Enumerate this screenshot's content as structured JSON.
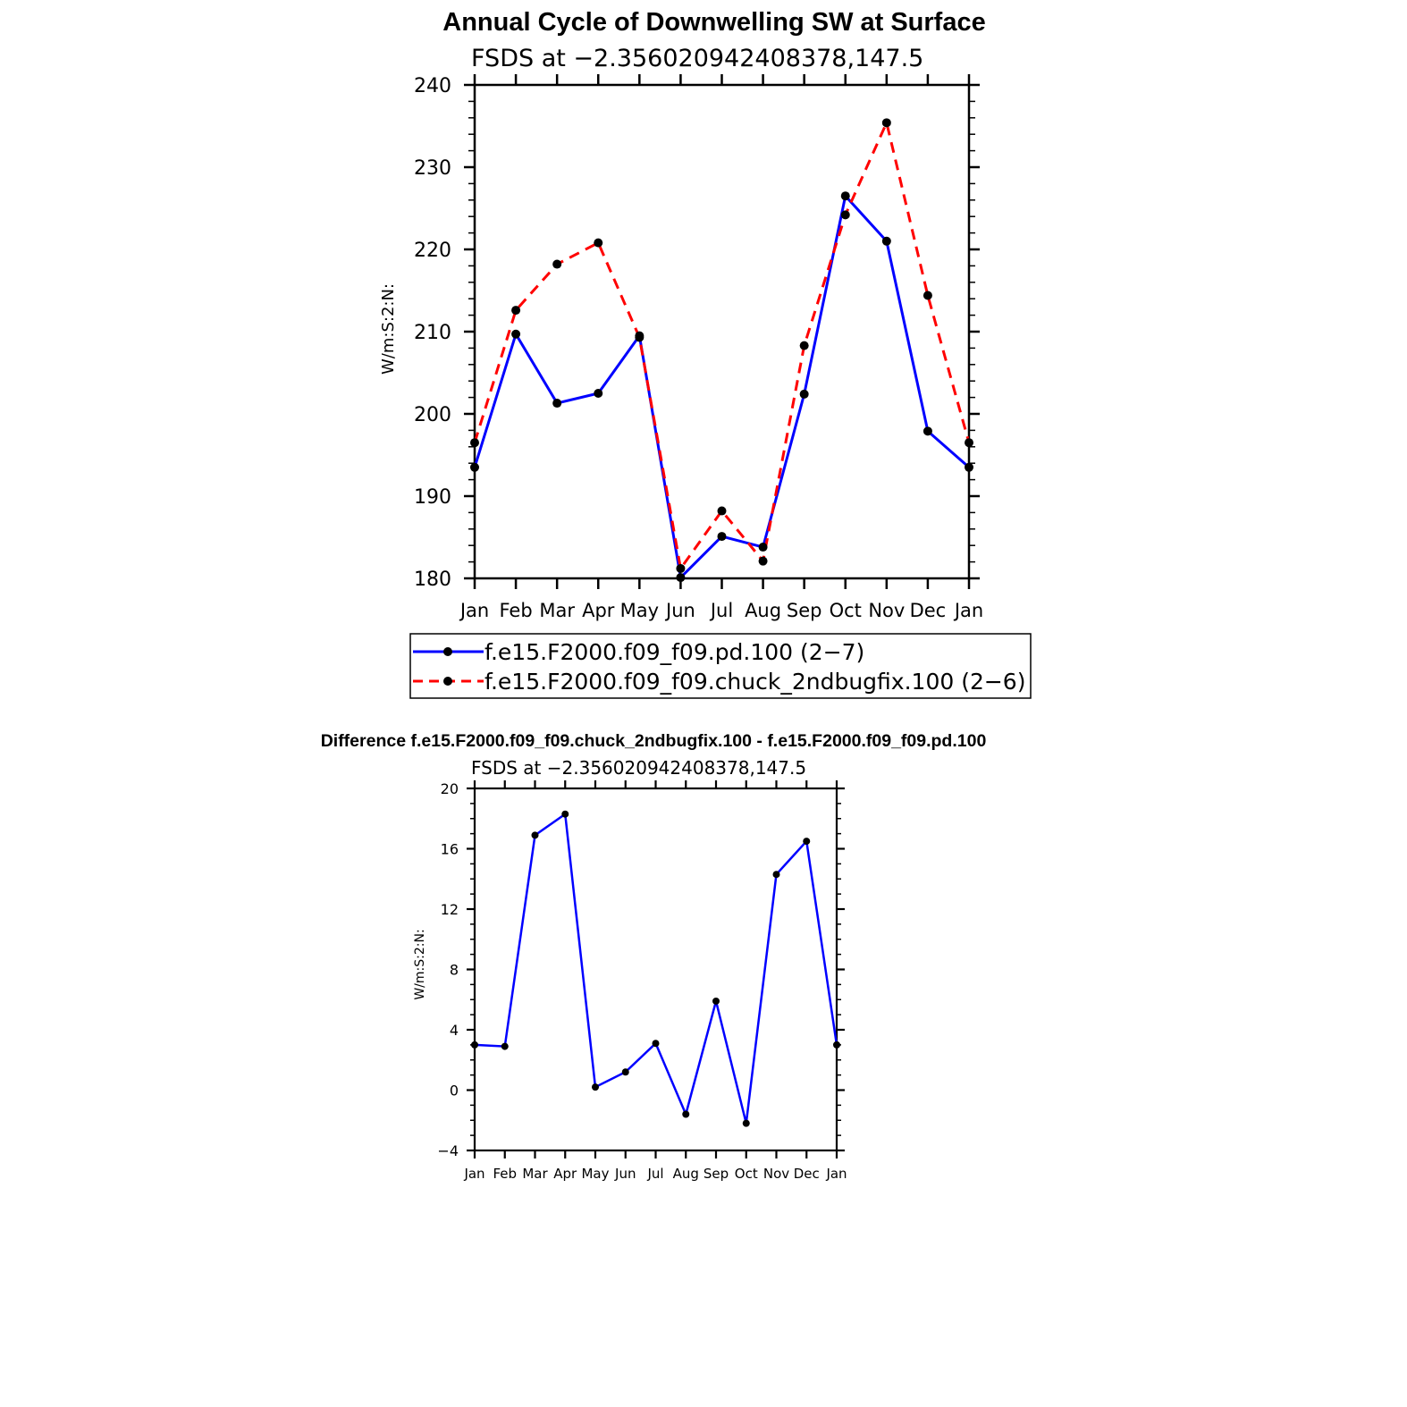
{
  "chart_data": [
    {
      "type": "line",
      "title": "Annual Cycle of Downwelling SW at Surface",
      "subtitle": "FSDS at −2.356020942408378,147.5",
      "ylabel": "W/m:S:2:N:",
      "xlabel": "",
      "categories": [
        "Jan",
        "Feb",
        "Mar",
        "Apr",
        "May",
        "Jun",
        "Jul",
        "Aug",
        "Sep",
        "Oct",
        "Nov",
        "Dec",
        "Jan"
      ],
      "ylim": [
        180,
        240
      ],
      "yticks": [
        "180",
        "190",
        "200",
        "210",
        "220",
        "230",
        "240"
      ],
      "grid": false,
      "legend_position": "below",
      "series": [
        {
          "name": "f.e15.F2000.f09_f09.pd.100 (2−7)",
          "color": "#0000ff",
          "style": "solid",
          "values": [
            193.5,
            209.7,
            201.3,
            202.5,
            209.5,
            180.1,
            185.1,
            183.8,
            202.4,
            226.5,
            221.0,
            197.9,
            193.5
          ]
        },
        {
          "name": "f.e15.F2000.f09_f09.chuck_2ndbugfix.100 (2−6)",
          "color": "#ff0000",
          "style": "dashed",
          "values": [
            196.5,
            212.6,
            218.2,
            220.8,
            209.3,
            181.2,
            188.2,
            182.1,
            208.3,
            224.2,
            235.4,
            214.4,
            196.5
          ]
        }
      ]
    },
    {
      "type": "line",
      "title": "Difference f.e15.F2000.f09_f09.chuck_2ndbugfix.100 - f.e15.F2000.f09_f09.pd.100",
      "subtitle": "FSDS at −2.356020942408378,147.5",
      "ylabel": "W/m:S:2:N:",
      "xlabel": "",
      "categories": [
        "Jan",
        "Feb",
        "Mar",
        "Apr",
        "May",
        "Jun",
        "Jul",
        "Aug",
        "Sep",
        "Oct",
        "Nov",
        "Dec",
        "Jan"
      ],
      "ylim": [
        -4,
        20
      ],
      "yticks": [
        "−4",
        "0",
        "4",
        "8",
        "12",
        "16",
        "20"
      ],
      "grid": false,
      "series": [
        {
          "color": "#0000ff",
          "style": "solid",
          "values": [
            3.0,
            2.9,
            16.9,
            18.3,
            0.2,
            1.2,
            3.1,
            -1.6,
            5.9,
            -2.2,
            14.3,
            16.5,
            3.0
          ]
        }
      ]
    }
  ]
}
